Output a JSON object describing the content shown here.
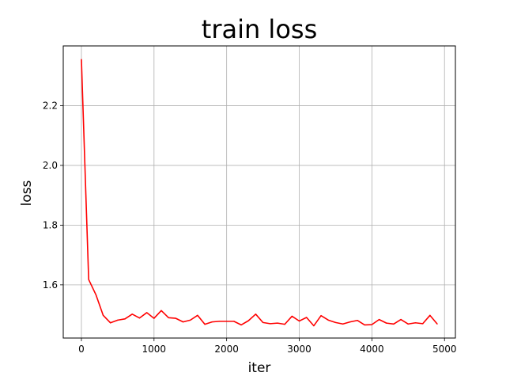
{
  "chart_data": {
    "type": "line",
    "title": "train loss",
    "xlabel": "iter",
    "ylabel": "loss",
    "xlim": [
      -250,
      5150
    ],
    "ylim": [
      1.422,
      2.4
    ],
    "xticks": [
      0,
      1000,
      2000,
      3000,
      4000,
      5000
    ],
    "yticks": [
      1.6,
      1.8,
      2.0,
      2.2
    ],
    "xtick_labels": [
      "0",
      "1000",
      "2000",
      "3000",
      "4000",
      "5000"
    ],
    "ytick_labels": [
      "1.6",
      "1.8",
      "2.0",
      "2.2"
    ],
    "grid": true,
    "series": [
      {
        "color": "#ff0000",
        "x": [
          0,
          100,
          200,
          300,
          400,
          500,
          600,
          700,
          800,
          900,
          1000,
          1100,
          1200,
          1300,
          1400,
          1500,
          1600,
          1700,
          1800,
          1900,
          2000,
          2100,
          2200,
          2300,
          2400,
          2500,
          2600,
          2700,
          2800,
          2900,
          3000,
          3100,
          3200,
          3300,
          3400,
          3500,
          3600,
          3700,
          3800,
          3900,
          4000,
          4100,
          4200,
          4300,
          4400,
          4500,
          4600,
          4700,
          4800,
          4900
        ],
        "y": [
          2.355,
          1.618,
          1.567,
          1.498,
          1.473,
          1.482,
          1.486,
          1.502,
          1.489,
          1.507,
          1.488,
          1.514,
          1.49,
          1.488,
          1.476,
          1.482,
          1.498,
          1.468,
          1.476,
          1.478,
          1.478,
          1.478,
          1.466,
          1.48,
          1.502,
          1.474,
          1.47,
          1.472,
          1.468,
          1.495,
          1.479,
          1.491,
          1.463,
          1.497,
          1.482,
          1.474,
          1.469,
          1.476,
          1.481,
          1.466,
          1.467,
          1.484,
          1.472,
          1.469,
          1.484,
          1.469,
          1.473,
          1.47,
          1.498,
          1.469
        ]
      }
    ]
  }
}
